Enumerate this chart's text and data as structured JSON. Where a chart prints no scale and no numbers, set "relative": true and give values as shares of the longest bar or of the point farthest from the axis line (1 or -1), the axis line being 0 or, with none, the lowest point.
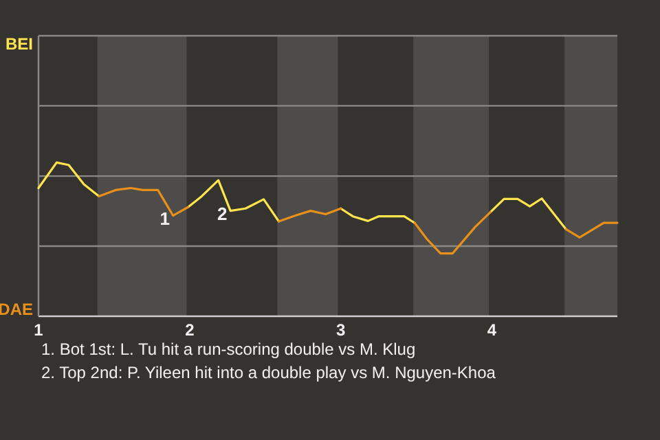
{
  "chart_data": {
    "type": "line",
    "relative": true,
    "x": [
      1,
      1.12,
      1.2,
      1.3,
      1.4,
      1.51,
      1.61,
      1.69,
      1.79,
      1.89,
      1.99,
      2.08,
      2.19,
      2.27,
      2.37,
      2.49,
      2.59,
      2.7,
      2.8,
      2.9,
      3,
      3.08,
      3.18,
      3.25,
      3.42,
      3.49,
      3.57,
      3.66,
      3.74,
      3.89,
      3.99,
      4.08,
      4.17,
      4.25,
      4.33,
      4.49,
      4.58,
      4.74,
      4.83
    ],
    "series": [
      {
        "name": "BEI",
        "color": "#ffe44d",
        "values": [
          0.834,
          1,
          0.984,
          0.859,
          0.781,
          null,
          null,
          null,
          null,
          null,
          0.71,
          0.781,
          0.885,
          0.686,
          0.701,
          0.761,
          0.617,
          null,
          null,
          null,
          0.701,
          0.65,
          0.62,
          0.65,
          0.65,
          0.606,
          null,
          null,
          null,
          null,
          0.677,
          0.763,
          0.763,
          0.715,
          0.766,
          0.566,
          null,
          null,
          null
        ]
      },
      {
        "name": "DAE",
        "color": "#e8901a",
        "values": [
          null,
          null,
          null,
          null,
          0.781,
          0.821,
          0.834,
          0.821,
          0.821,
          0.655,
          0.71,
          null,
          null,
          null,
          null,
          null,
          0.617,
          0.655,
          0.686,
          0.664,
          0.701,
          null,
          null,
          null,
          null,
          0.606,
          0.502,
          0.409,
          0.409,
          0.582,
          0.677,
          null,
          null,
          null,
          null,
          0.566,
          0.513,
          0.608,
          0.608
        ]
      }
    ],
    "xlim": [
      1,
      4.83
    ],
    "xticks": [
      1,
      2,
      3,
      4
    ],
    "ref_lines": [
      {
        "axis": "y",
        "value": 0.456,
        "color": "#8a8885"
      },
      {
        "axis": "y",
        "value": 0.912,
        "color": "#8a8885"
      },
      {
        "axis": "y",
        "value": 1.369,
        "color": "#8a8885"
      },
      {
        "axis": "y",
        "value": 1.825,
        "color": "#8a8885"
      }
    ],
    "legend": "left",
    "bands": [
      {
        "axis": "x",
        "from": 1.39,
        "to": 1.98,
        "color": "#4d4c4a"
      },
      {
        "axis": "x",
        "from": 2.58,
        "to": 2.98,
        "color": "#4d4c4a"
      },
      {
        "axis": "x",
        "from": 3.48,
        "to": 3.98,
        "color": "#4d4c4a"
      },
      {
        "axis": "x",
        "from": 4.48,
        "to": 4.83,
        "color": "#4d4c4a"
      }
    ],
    "annotations": [
      {
        "text": "1",
        "x": 1.89,
        "y": 0.655
      },
      {
        "text": "2",
        "x": 2.27,
        "y": 0.686
      },
      "1. Bot 1st: L. Tu hit a run-scoring double vs M. Klug",
      "2. Top 2nd: P. Yileen hit into a double play vs M. Nguyen-Khoa"
    ]
  }
}
